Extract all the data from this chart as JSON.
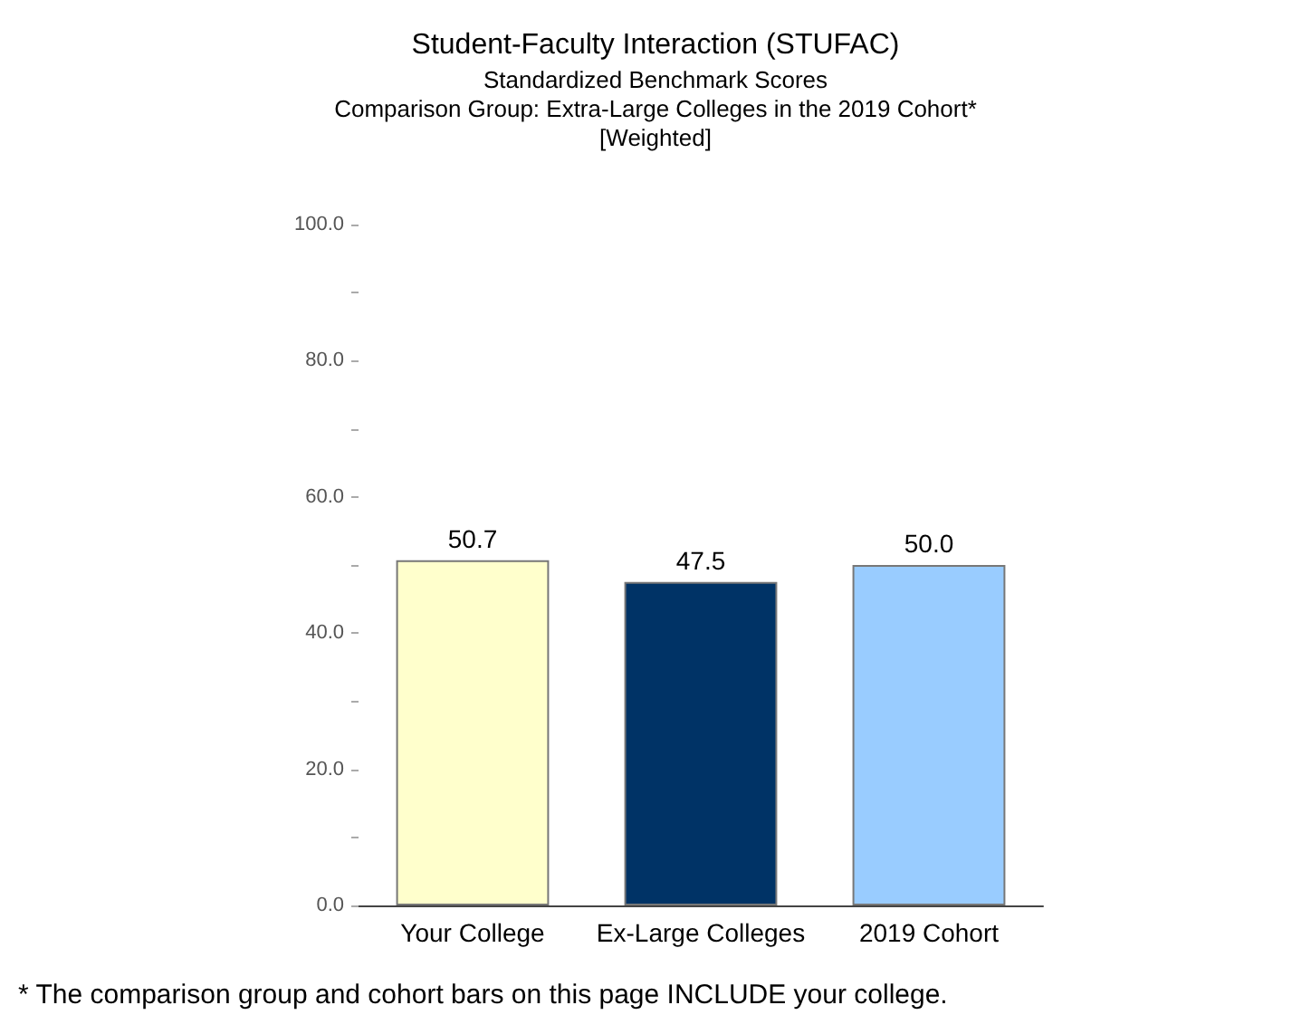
{
  "chart_data": {
    "type": "bar",
    "title": "Student-Faculty Interaction (STUFAC)",
    "subtitle": "Standardized Benchmark Scores\nComparison Group: Extra-Large Colleges in the 2019 Cohort*\n[Weighted]",
    "categories": [
      "Your College",
      "Ex-Large Colleges",
      "2019 Cohort"
    ],
    "values": [
      50.7,
      47.5,
      50.0
    ],
    "value_labels": [
      "50.7",
      "47.5",
      "50.0"
    ],
    "colors": [
      "#ffffcc",
      "#003366",
      "#99ccff"
    ],
    "ylim": [
      0,
      100
    ],
    "yticks": [
      {
        "value": 0,
        "label": "0.0"
      },
      {
        "value": 10,
        "label": null
      },
      {
        "value": 20,
        "label": "20.0"
      },
      {
        "value": 30,
        "label": null
      },
      {
        "value": 40,
        "label": "40.0"
      },
      {
        "value": 50,
        "label": null
      },
      {
        "value": 60,
        "label": "60.0"
      },
      {
        "value": 70,
        "label": null
      },
      {
        "value": 80,
        "label": "80.0"
      },
      {
        "value": 90,
        "label": null
      },
      {
        "value": 100,
        "label": "100.0"
      }
    ],
    "annotations": [
      "* The comparison group and cohort bars on this page INCLUDE your college."
    ]
  }
}
